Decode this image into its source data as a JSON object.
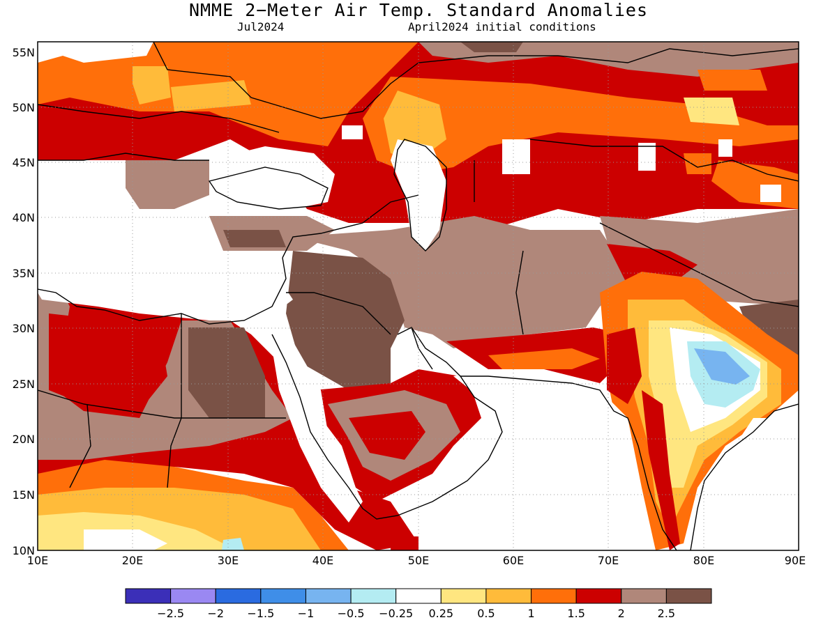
{
  "header": {
    "title": "NMME 2−Meter Air Temp. Standard Anomalies",
    "target_month": "Jul2024",
    "initial_conditions": "April2024 initial conditions"
  },
  "map": {
    "region": "Middle East, North-East Africa and South Asia",
    "lon_labels": [
      "10E",
      "20E",
      "30E",
      "40E",
      "50E",
      "60E",
      "70E",
      "80E",
      "90E"
    ],
    "lat_labels": [
      "55N",
      "50N",
      "45N",
      "40N",
      "35N",
      "30N",
      "25N",
      "20N",
      "15N",
      "10N"
    ],
    "gridlines": "dotted"
  },
  "colorbar": {
    "colors": [
      "#3b2fb8",
      "#9a88f2",
      "#2a6be0",
      "#3f8ee8",
      "#77b4f0",
      "#b4ecf2",
      "#ffffff",
      "#ffe680",
      "#ffbb3a",
      "#ff6f0a",
      "#cc0000",
      "#b0877a",
      "#7a5246"
    ],
    "labels": [
      "−2.5",
      "−2",
      "−1.5",
      "−1",
      "−0.5",
      "−0.25",
      "0.25",
      "0.5",
      "1",
      "1.5",
      "2",
      "2.5"
    ]
  }
}
